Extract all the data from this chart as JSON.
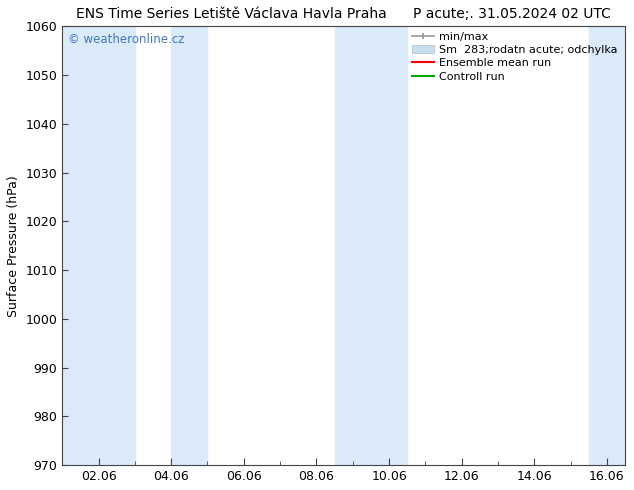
{
  "title": "ENS Time Series Letiště Václava Havla Praha      P acute;. 31.05.2024 02 UTC",
  "ylabel": "Surface Pressure (hPa)",
  "ylim": [
    970,
    1060
  ],
  "yticks": [
    970,
    980,
    990,
    1000,
    1010,
    1020,
    1030,
    1040,
    1050,
    1060
  ],
  "xlim": [
    0.0,
    15.5
  ],
  "xtick_positions": [
    1,
    3,
    5,
    7,
    9,
    11,
    13,
    15
  ],
  "xtick_labels": [
    "02.06",
    "04.06",
    "06.06",
    "08.06",
    "10.06",
    "12.06",
    "14.06",
    "16.06"
  ],
  "xtick_minor_positions": [
    0,
    1,
    2,
    3,
    4,
    5,
    6,
    7,
    8,
    9,
    10,
    11,
    12,
    13,
    14,
    15
  ],
  "watermark": "© weatheronline.cz",
  "watermark_color": "#4477bb",
  "background_color": "#ffffff",
  "plot_bg_color": "#ffffff",
  "shaded_bands": [
    {
      "x_start": 0.0,
      "x_end": 2.0,
      "color": "#daeaf8"
    },
    {
      "x_start": 3.0,
      "x_end": 4.0,
      "color": "#daeaf8"
    },
    {
      "x_start": 7.5,
      "x_end": 9.5,
      "color": "#daeaf8"
    },
    {
      "x_start": 14.5,
      "x_end": 15.5,
      "color": "#daeaf8"
    }
  ],
  "legend_min_max_color": "#999999",
  "legend_sm_color": "#c8dff0",
  "legend_ens_color": "#ff0000",
  "legend_ctrl_color": "#00aa00",
  "title_fontsize": 10,
  "axis_fontsize": 9,
  "tick_fontsize": 9,
  "legend_fontsize": 8
}
